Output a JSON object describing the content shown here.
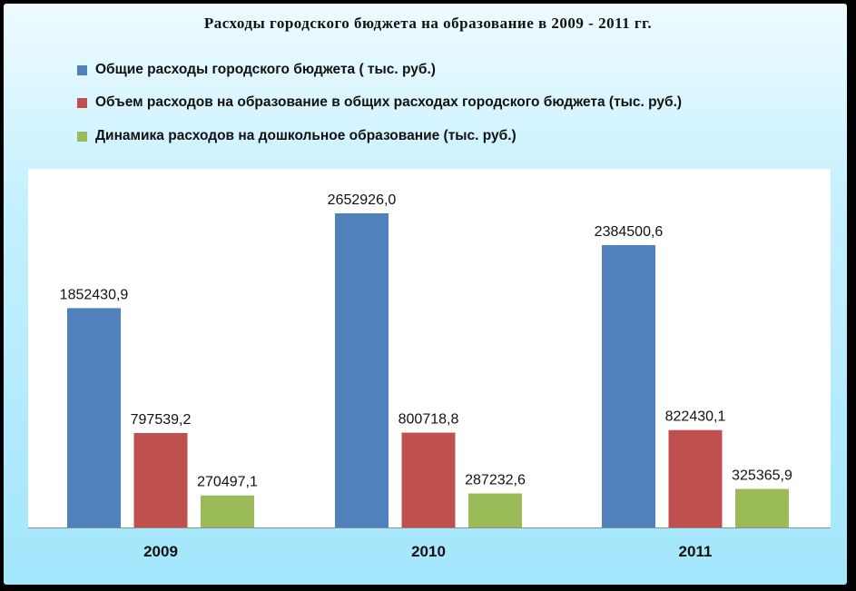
{
  "chart_data": {
    "type": "bar",
    "title": "Расходы  городского  бюджета на образование в  2009 - 2011 гг.",
    "categories": [
      "2009",
      "2010",
      "2011"
    ],
    "series": [
      {
        "name": "Общие расходы городского бюджета ( тыс. руб.)",
        "color": "#4f81bd",
        "values": [
          1852430.9,
          2652926.0,
          2384500.6
        ],
        "labels": [
          "1852430,9",
          "2652926,0",
          "2384500,6"
        ]
      },
      {
        "name": "Объем расходов на образование  в общих расходах городского  бюджета (тыс. руб.)",
        "color": "#c0504d",
        "values": [
          797539.2,
          800718.8,
          822430.1
        ],
        "labels": [
          "797539,2",
          "800718,8",
          "822430,1"
        ]
      },
      {
        "name": "Динамика расходов на дошкольное образование  (тыс. руб.)",
        "color": "#9bbb59",
        "values": [
          270497.1,
          287232.6,
          325365.9
        ],
        "labels": [
          "270497,1",
          "287232,6",
          "325365,9"
        ]
      }
    ],
    "ylim": [
      0,
      3000000
    ],
    "grid": false,
    "legend": "top"
  }
}
